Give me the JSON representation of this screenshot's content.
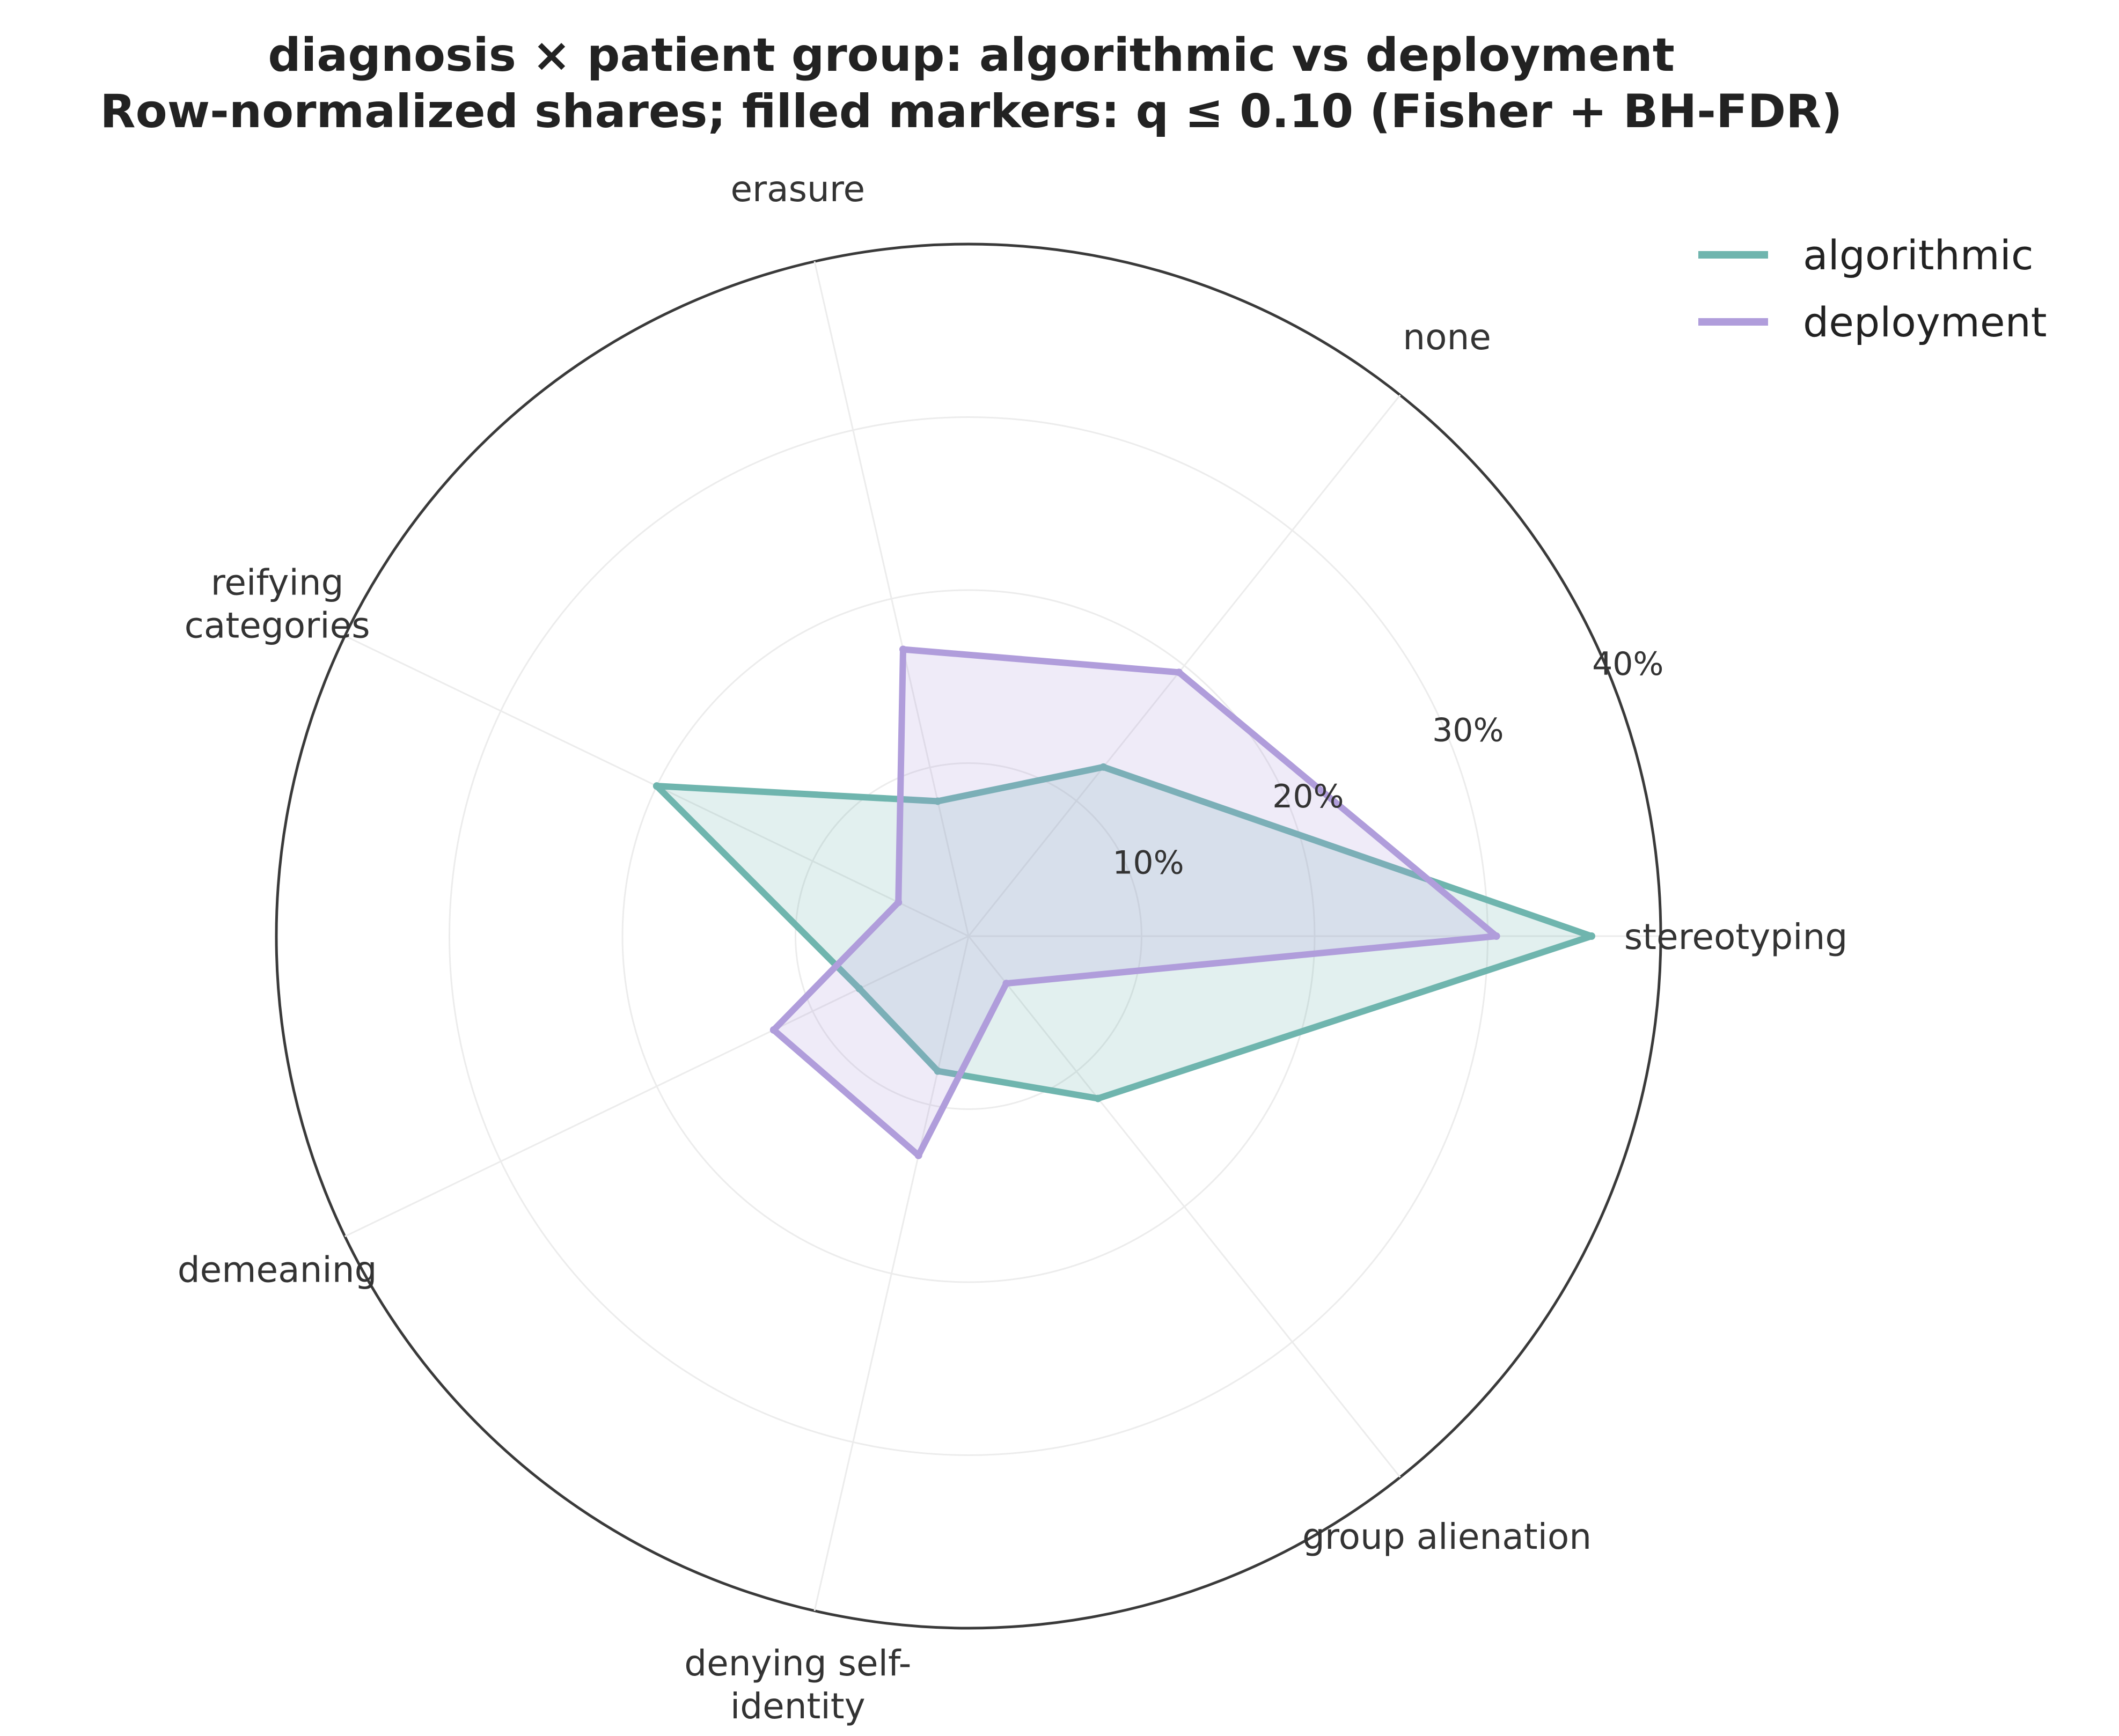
{
  "chart_data": {
    "type": "radar",
    "title": "diagnosis × patient group: algorithmic vs deployment",
    "subtitle": "Row-normalized shares; filled markers: q ≤ 0.10 (Fisher + BH-FDR)",
    "categories": [
      "stereotyping",
      "none",
      "erasure",
      "reifying categories",
      "demeaning",
      "denying self-identity",
      "group alienation"
    ],
    "category_label_lines": [
      [
        "stereotyping"
      ],
      [
        "none"
      ],
      [
        "erasure"
      ],
      [
        "reifying",
        "categories"
      ],
      [
        "demeaning"
      ],
      [
        "denying self-",
        "identity"
      ],
      [
        "group alienation"
      ]
    ],
    "rlim": [
      0,
      40
    ],
    "r_ticks": [
      10,
      20,
      30,
      40
    ],
    "r_tick_labels": [
      "10%",
      "20%",
      "30%",
      "40%"
    ],
    "series": [
      {
        "name": "algorithmic",
        "color": "#6fb5ae",
        "values": [
          36,
          12.5,
          8,
          20,
          7,
          8,
          12
        ]
      },
      {
        "name": "deployment",
        "color": "#b09ddb",
        "values": [
          30.5,
          19.5,
          17,
          4.5,
          12.5,
          13,
          3.5
        ]
      }
    ],
    "legend_position": "top-right",
    "grid": true
  }
}
